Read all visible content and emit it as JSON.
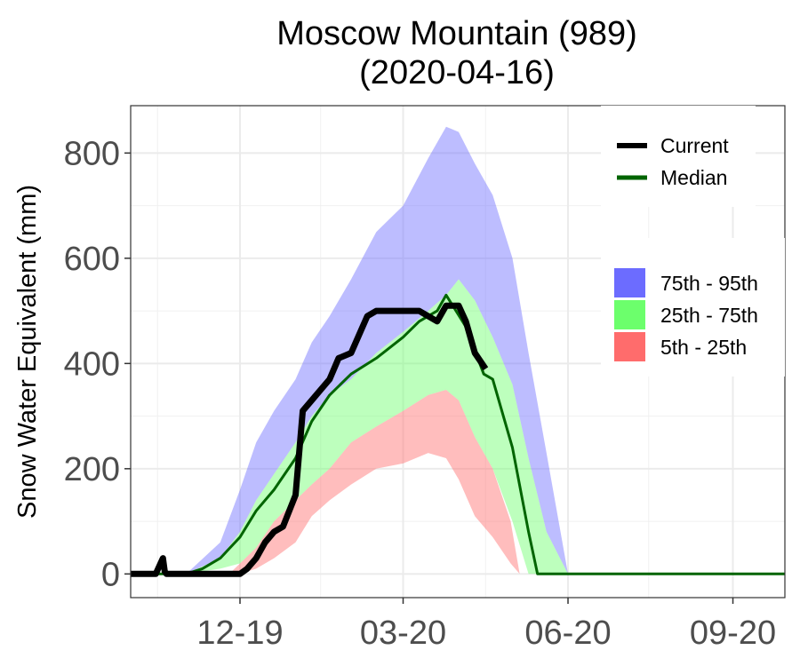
{
  "chart_data": {
    "type": "area",
    "title_line1": "Moscow Mountain (989)",
    "title_line2": "(2020-04-16)",
    "xlabel": "",
    "ylabel": "Snow Water Equivalent (mm)",
    "xlim": [
      "2019-10-01",
      "2020-09-30"
    ],
    "ylim": [
      -45,
      890
    ],
    "y_ticks": [
      0,
      200,
      400,
      600,
      800
    ],
    "x_ticks": [
      {
        "date": "2019-12-01",
        "label": "12-19"
      },
      {
        "date": "2020-03-01",
        "label": "03-20"
      },
      {
        "date": "2020-06-01",
        "label": "06-20"
      },
      {
        "date": "2020-09-01",
        "label": "09-20"
      }
    ],
    "grid": true,
    "legend_placement": "right",
    "colors": {
      "current": "#000000",
      "median": "#006400",
      "p75_95": "#6c6cff",
      "p25_75": "#6cff6c",
      "p5_25": "#ff6c6c",
      "band_opacity": 0.45
    },
    "legend_lines": [
      {
        "key": "current",
        "label": "Current"
      },
      {
        "key": "median",
        "label": "Median"
      }
    ],
    "legend_bands": [
      {
        "key": "p75_95",
        "label": "75th - 95th"
      },
      {
        "key": "p25_75",
        "label": "25th - 75th"
      },
      {
        "key": "p5_25",
        "label": "5th - 25th"
      }
    ],
    "series": [
      {
        "name": "Current",
        "x": [
          "2019-10-01",
          "2019-10-15",
          "2019-10-19",
          "2019-10-20",
          "2019-10-21",
          "2019-10-25",
          "2019-11-01",
          "2019-11-20",
          "2019-11-25",
          "2019-12-01",
          "2019-12-05",
          "2019-12-10",
          "2019-12-15",
          "2019-12-20",
          "2019-12-25",
          "2020-01-01",
          "2020-01-05",
          "2020-01-10",
          "2020-01-15",
          "2020-01-20",
          "2020-01-25",
          "2020-02-01",
          "2020-02-10",
          "2020-02-15",
          "2020-02-20",
          "2020-03-01",
          "2020-03-10",
          "2020-03-20",
          "2020-03-25",
          "2020-04-01",
          "2020-04-05",
          "2020-04-10",
          "2020-04-16"
        ],
        "y": [
          0,
          0,
          30,
          5,
          0,
          0,
          0,
          0,
          0,
          0,
          10,
          30,
          60,
          80,
          90,
          150,
          310,
          330,
          350,
          370,
          410,
          420,
          490,
          500,
          500,
          500,
          500,
          480,
          510,
          510,
          480,
          420,
          390
        ]
      },
      {
        "name": "Median",
        "x": [
          "2019-10-01",
          "2019-11-01",
          "2019-11-10",
          "2019-11-20",
          "2019-12-01",
          "2019-12-10",
          "2019-12-20",
          "2020-01-01",
          "2020-01-10",
          "2020-01-20",
          "2020-02-01",
          "2020-02-15",
          "2020-03-01",
          "2020-03-10",
          "2020-03-20",
          "2020-03-25",
          "2020-04-05",
          "2020-04-15",
          "2020-04-20",
          "2020-05-01",
          "2020-05-10",
          "2020-05-15",
          "2020-05-20",
          "2020-09-30"
        ],
        "y": [
          0,
          0,
          10,
          30,
          70,
          120,
          160,
          220,
          290,
          340,
          380,
          410,
          450,
          480,
          500,
          530,
          470,
          380,
          370,
          240,
          80,
          0,
          0,
          0
        ]
      }
    ],
    "bands": [
      {
        "key": "p75_95",
        "x": [
          "2019-10-01",
          "2019-11-01",
          "2019-11-20",
          "2019-12-01",
          "2019-12-10",
          "2019-12-20",
          "2020-01-01",
          "2020-01-10",
          "2020-01-20",
          "2020-02-01",
          "2020-02-15",
          "2020-03-01",
          "2020-03-15",
          "2020-03-25",
          "2020-04-01",
          "2020-04-10",
          "2020-04-20",
          "2020-05-01",
          "2020-05-10",
          "2020-05-20",
          "2020-06-01",
          "2020-09-30"
        ],
        "upper": [
          0,
          0,
          60,
          160,
          250,
          310,
          370,
          440,
          490,
          560,
          650,
          700,
          790,
          850,
          840,
          780,
          720,
          600,
          420,
          230,
          0,
          0
        ],
        "lower": [
          0,
          0,
          30,
          80,
          140,
          190,
          250,
          300,
          340,
          370,
          420,
          460,
          500,
          530,
          560,
          520,
          450,
          360,
          220,
          80,
          0,
          0
        ]
      },
      {
        "key": "p25_75",
        "x": [
          "2019-10-01",
          "2019-11-01",
          "2019-11-20",
          "2019-12-01",
          "2019-12-10",
          "2019-12-20",
          "2020-01-01",
          "2020-01-10",
          "2020-01-20",
          "2020-02-01",
          "2020-02-15",
          "2020-03-01",
          "2020-03-15",
          "2020-03-25",
          "2020-04-01",
          "2020-04-10",
          "2020-04-20",
          "2020-05-01",
          "2020-05-10",
          "2020-05-20",
          "2020-06-01",
          "2020-09-30"
        ],
        "upper": [
          0,
          0,
          30,
          80,
          140,
          190,
          250,
          300,
          340,
          370,
          420,
          460,
          500,
          530,
          560,
          520,
          450,
          360,
          220,
          80,
          0,
          0
        ],
        "lower": [
          0,
          0,
          10,
          20,
          50,
          100,
          140,
          170,
          200,
          250,
          280,
          310,
          340,
          350,
          330,
          260,
          200,
          100,
          0,
          0,
          0,
          0
        ]
      },
      {
        "key": "p5_25",
        "x": [
          "2019-10-01",
          "2019-11-25",
          "2019-12-01",
          "2019-12-10",
          "2019-12-20",
          "2020-01-01",
          "2020-01-10",
          "2020-01-20",
          "2020-02-01",
          "2020-02-15",
          "2020-03-01",
          "2020-03-15",
          "2020-03-25",
          "2020-04-01",
          "2020-04-10",
          "2020-04-20",
          "2020-04-30",
          "2020-05-05",
          "2020-09-30"
        ],
        "upper": [
          0,
          0,
          20,
          50,
          100,
          140,
          170,
          200,
          250,
          280,
          310,
          340,
          350,
          330,
          260,
          200,
          100,
          0,
          0
        ],
        "lower": [
          0,
          0,
          0,
          10,
          30,
          60,
          110,
          140,
          170,
          200,
          210,
          230,
          220,
          180,
          110,
          70,
          20,
          0,
          0
        ]
      }
    ]
  }
}
